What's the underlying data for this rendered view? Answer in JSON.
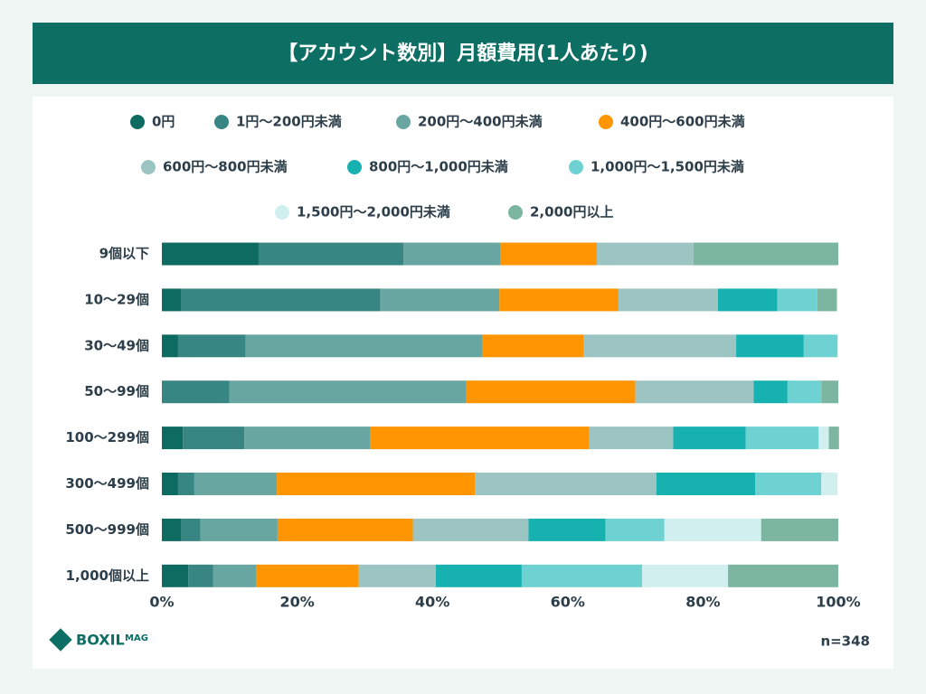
{
  "chart_data": {
    "type": "stacked-bar-horizontal",
    "title": "【アカウント数別】月額費用(1人あたり)",
    "categories": [
      "9個以下",
      "10～29個",
      "30～49個",
      "50～99個",
      "100～299個",
      "300～499個",
      "500～999個",
      "1,000個以上"
    ],
    "series": [
      {
        "name": "0円",
        "color": "#0e6b62",
        "values": [
          14.3,
          2.9,
          2.4,
          0,
          3.1,
          2.4,
          2.9,
          3.9
        ]
      },
      {
        "name": "1円～200円未満",
        "color": "#388683",
        "values": [
          21.4,
          29.4,
          10.0,
          10.0,
          9.1,
          2.4,
          2.8,
          3.7
        ]
      },
      {
        "name": "200円～400円未満",
        "color": "#68a6a1",
        "values": [
          14.3,
          17.6,
          35.0,
          35.0,
          18.6,
          12.2,
          11.4,
          6.3
        ]
      },
      {
        "name": "400円～600円未満",
        "color": "#ff9500",
        "values": [
          14.3,
          17.6,
          15.0,
          25.0,
          32.4,
          29.3,
          20.0,
          15.2
        ]
      },
      {
        "name": "600円～800円未満",
        "color": "#9cc4c2",
        "values": [
          14.3,
          14.7,
          22.5,
          17.5,
          12.4,
          26.8,
          17.1,
          11.4
        ]
      },
      {
        "name": "800円～1,000円未満",
        "color": "#17b2b0",
        "values": [
          0,
          8.8,
          10.0,
          5.0,
          10.7,
          14.6,
          11.4,
          12.7
        ]
      },
      {
        "name": "1,000円～1,500円未満",
        "color": "#6fd2d2",
        "values": [
          0,
          5.9,
          5.0,
          5.0,
          10.8,
          9.8,
          8.7,
          17.8
        ]
      },
      {
        "name": "1,500円～2,000円未満",
        "color": "#d1efef",
        "values": [
          0,
          0,
          0,
          0,
          1.5,
          2.4,
          14.3,
          12.7
        ]
      },
      {
        "name": "2,000円以上",
        "color": "#7cb5a0",
        "values": [
          21.4,
          2.9,
          0,
          2.5,
          1.5,
          0,
          11.4,
          16.3
        ]
      }
    ],
    "xlim": [
      0,
      100
    ],
    "xticks": [
      {
        "value": 0,
        "label": "0%"
      },
      {
        "value": 20,
        "label": "20%"
      },
      {
        "value": 40,
        "label": "40%"
      },
      {
        "value": 60,
        "label": "60%"
      },
      {
        "value": 80,
        "label": "80%"
      },
      {
        "value": 100,
        "label": "100%"
      }
    ],
    "note": "n=348",
    "logo": "BOXIL",
    "logo_badge": "MAG"
  }
}
